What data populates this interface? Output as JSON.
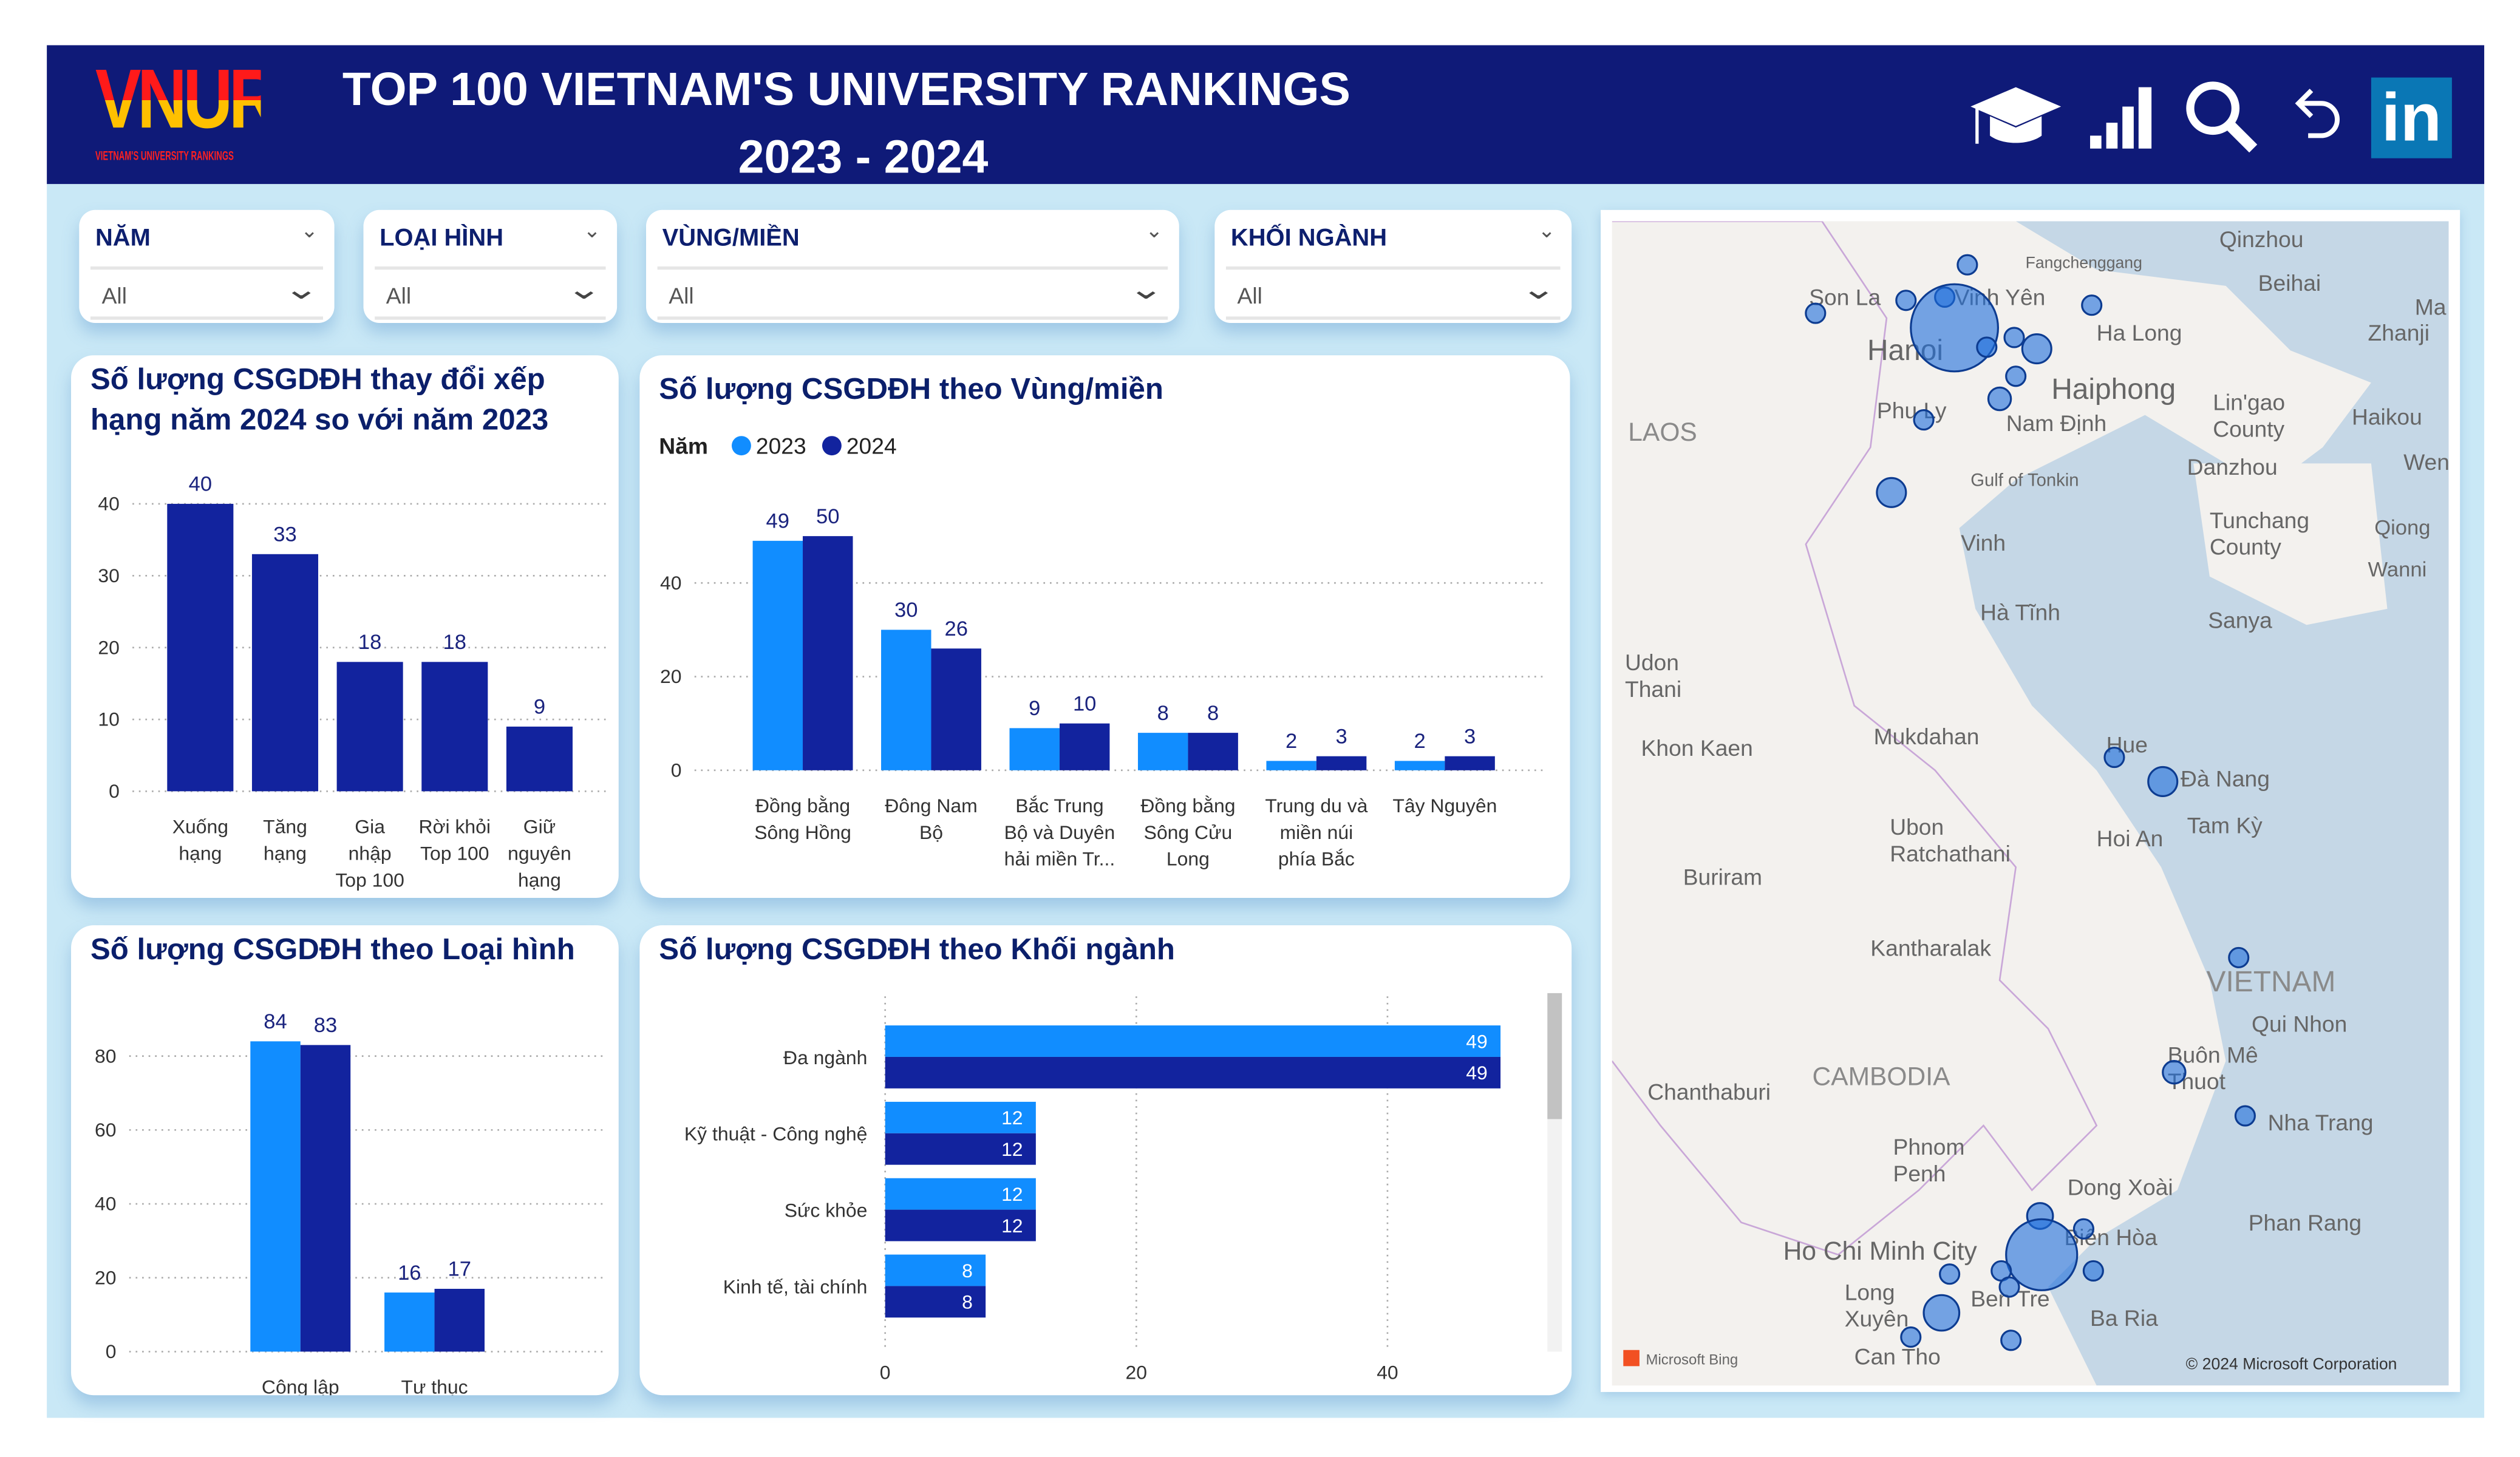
{
  "header": {
    "logo_text": "VNUR",
    "logo_subtext": "VIETNAM'S UNIVERSITY RANKINGS",
    "title": "TOP 100 VIETNAM'S UNIVERSITY RANKINGS",
    "subtitle": "2023 - 2024",
    "icons": [
      "graduation-cap-icon",
      "bar-chart-icon",
      "search-icon",
      "undo-icon",
      "linkedin-icon"
    ],
    "linkedin_text": "in"
  },
  "slicers": [
    {
      "label": "NĂM",
      "value": "All"
    },
    {
      "label": "LOẠI HÌNH",
      "value": "All"
    },
    {
      "label": "VÙNG/MIỀN",
      "value": "All"
    },
    {
      "label": "KHỐI NGÀNH",
      "value": "All"
    }
  ],
  "colors": {
    "header": "#0f1a78",
    "y2023": "#118dff",
    "y2024": "#12239e",
    "title": "#0b1f6b",
    "background": "#c9e8f6"
  },
  "chart_data": [
    {
      "type": "bar",
      "title": "Số lượng CSGDĐH thay đổi xếp hạng năm 2024 so với năm 2023",
      "categories": [
        "Xuống\nhạng",
        "Tăng\nhạng",
        "Gia\nnhập\nTop 100",
        "Rời khỏi\nTop 100",
        "Giữ\nnguyên\nhạng"
      ],
      "values": [
        40,
        33,
        18,
        18,
        9
      ],
      "ylim": [
        0,
        40
      ],
      "yticks": [
        0,
        10,
        20,
        30,
        40
      ],
      "grid": true
    },
    {
      "type": "bar",
      "title": "Số lượng CSGDĐH theo Vùng/miền",
      "legend_title": "Năm",
      "legend_position": "top-left",
      "categories": [
        "Đồng bằng\nSông Hồng",
        "Đông Nam\nBộ",
        "Bắc Trung\nBộ và Duyên\nhải miền Tr...",
        "Đồng bằng\nSông Cửu\nLong",
        "Trung du và\nmiền núi\nphía Bắc",
        "Tây Nguyên"
      ],
      "series": [
        {
          "name": "2023",
          "values": [
            49,
            30,
            9,
            8,
            2,
            2
          ]
        },
        {
          "name": "2024",
          "values": [
            50,
            26,
            10,
            8,
            3,
            3
          ]
        }
      ],
      "ylim": [
        0,
        50
      ],
      "yticks": [
        0,
        20,
        40
      ],
      "grid": true
    },
    {
      "type": "bar",
      "title": "Số lượng CSGDĐH theo Loại hình",
      "categories": [
        "Công lập",
        "Tư thục"
      ],
      "series": [
        {
          "name": "2023",
          "values": [
            84,
            16
          ]
        },
        {
          "name": "2024",
          "values": [
            83,
            17
          ]
        }
      ],
      "ylim": [
        0,
        90
      ],
      "yticks": [
        0,
        20,
        40,
        60,
        80
      ],
      "grid": true
    },
    {
      "type": "bar",
      "orientation": "horizontal",
      "title": "Số lượng CSGDĐH theo Khối ngành",
      "categories": [
        "Đa ngành",
        "Kỹ thuật - Công nghệ",
        "Sức khỏe",
        "Kinh tế, tài chính"
      ],
      "series": [
        {
          "name": "2023",
          "values": [
            49,
            12,
            12,
            8
          ]
        },
        {
          "name": "2024",
          "values": [
            49,
            12,
            12,
            8
          ]
        }
      ],
      "xlim": [
        0,
        50
      ],
      "xticks": [
        0,
        20,
        40
      ],
      "grid": true
    }
  ],
  "map": {
    "labels": [
      "Fangchenggang",
      "Beihai",
      "Son La",
      "Vinh Yên",
      "Hanoi",
      "Ha Long",
      "Haiphong",
      "Phu Ly",
      "Nam Định",
      "Lin'gao\nCounty",
      "Haikou",
      "Danzhou",
      "LAOS",
      "Gulf of Tonkin",
      "Tunchang\nCounty",
      "Qiong",
      "Wanni",
      "Vinh",
      "Hà Tĩnh",
      "Sanya",
      "Udon\nThani",
      "Khon Kaen",
      "Mukdahan",
      "Hue",
      "Đà Nang",
      "Ubon\nRatchathani",
      "Hoi An",
      "Tam Kỳ",
      "Buriram",
      "Kantharalak",
      "VIETNAM",
      "Qui Nhon",
      "Buôn Mê\nThuot",
      "CAMBODIA",
      "Chanthaburi",
      "Nha Trang",
      "Phnom\nPenh",
      "Dong Xoài",
      "Phan Rang",
      "Ho Chi Minh City",
      "Biên Hòa",
      "Long\nXuyên",
      "Ben Tre",
      "Ba Ria",
      "Can Tho",
      "Zhanji",
      "Ma",
      "Wen",
      "Qinzhou"
    ],
    "attribution_left": "Microsoft Bing",
    "attribution_right": "© 2024 Microsoft Corporation"
  }
}
